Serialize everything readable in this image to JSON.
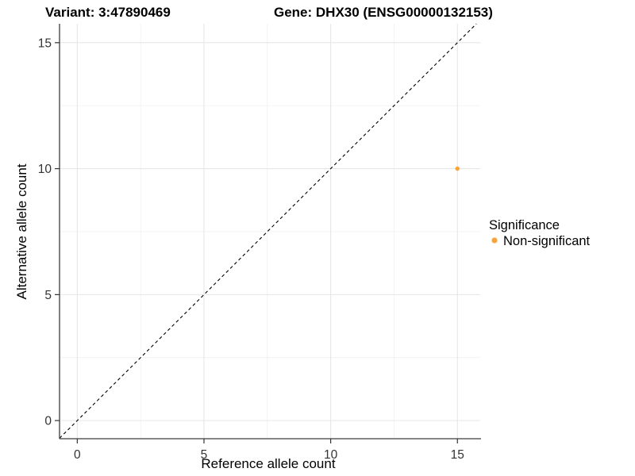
{
  "page": {
    "background": "#FFFFFF"
  },
  "chart_data": {
    "type": "scatter",
    "title_left": "Variant: 3:47890469",
    "title_right": "Gene: DHX30 (ENSG00000132153)",
    "xlabel": "Reference allele count",
    "ylabel": "Alternative allele count",
    "xlim": [
      -0.7,
      15.9
    ],
    "ylim": [
      -0.72,
      15.75
    ],
    "x_ticks": [
      0,
      5,
      10,
      15
    ],
    "y_ticks": [
      0,
      5,
      10,
      15
    ],
    "x_minor_ticks": [
      2.5,
      7.5,
      12.5
    ],
    "y_minor_ticks": [
      2.5,
      7.5,
      12.5
    ],
    "grid": "major+minor",
    "identity_line": {
      "equation": "y = x",
      "style": "dashed",
      "color": "#000000"
    },
    "series": [
      {
        "name": "Non-significant",
        "color": "#F9A43B",
        "points": [
          {
            "x": 15,
            "y": 10
          }
        ]
      }
    ],
    "legend": {
      "title": "Significance",
      "position": "right",
      "entries": [
        {
          "label": "Non-significant",
          "color": "#F9A43B"
        }
      ]
    },
    "colors": {
      "background": "#FFFFFF",
      "grid_major": "#E6E6E6",
      "grid_minor": "#F2F2F2",
      "axis": "#3C3C3C",
      "tick": "#333333",
      "point": "#F9A43B",
      "text": "#000000"
    }
  }
}
